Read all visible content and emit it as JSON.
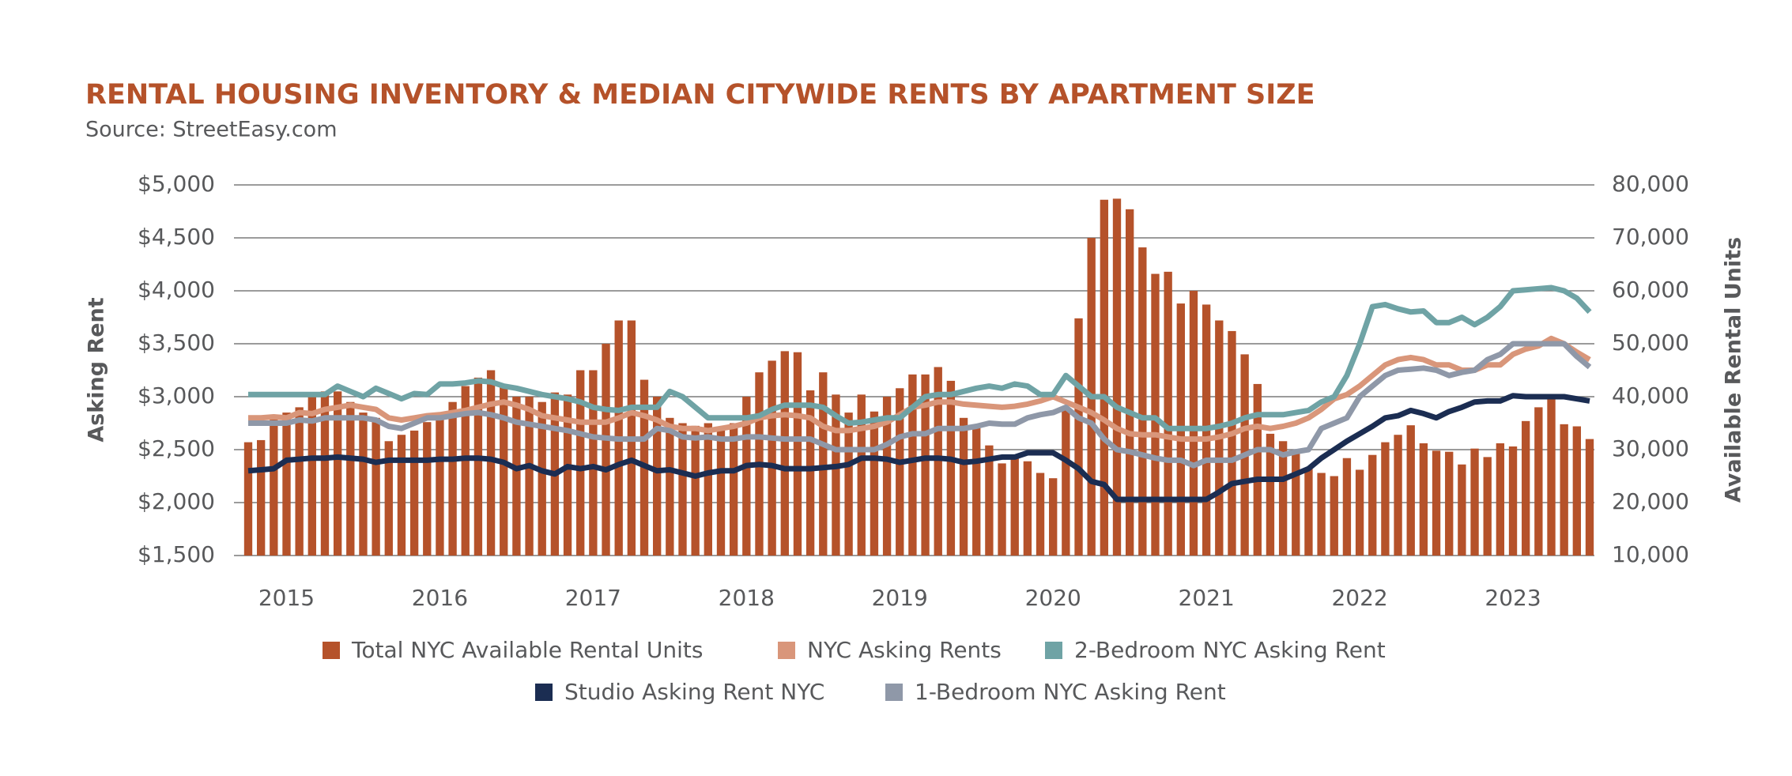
{
  "chart_data": {
    "type": "combo",
    "title": "RENTAL HOUSING INVENTORY & MEDIAN CITYWIDE RENTS BY APARTMENT SIZE",
    "subtitle": "Source: StreetEasy.com",
    "y_label": "Asking Rent",
    "y2_label": "Available Rental Units",
    "categories": [
      null,
      null,
      null,
      "2015",
      null,
      null,
      null,
      null,
      null,
      null,
      null,
      null,
      null,
      null,
      null,
      "2016",
      null,
      null,
      null,
      null,
      null,
      null,
      null,
      null,
      null,
      null,
      null,
      "2017",
      null,
      null,
      null,
      null,
      null,
      null,
      null,
      null,
      null,
      null,
      null,
      "2018",
      null,
      null,
      null,
      null,
      null,
      null,
      null,
      null,
      null,
      null,
      null,
      "2019",
      null,
      null,
      null,
      null,
      null,
      null,
      null,
      null,
      null,
      null,
      null,
      "2020",
      null,
      null,
      null,
      null,
      null,
      null,
      null,
      null,
      null,
      null,
      null,
      "2021",
      null,
      null,
      null,
      null,
      null,
      null,
      null,
      null,
      null,
      null,
      null,
      "2022",
      null,
      null,
      null,
      null,
      null,
      null,
      null,
      null,
      null,
      null,
      null,
      "2023",
      null,
      null,
      null,
      null,
      null,
      null
    ],
    "ylim": [
      1500,
      5000
    ],
    "yticks": [
      {
        "value": 1500,
        "label": "$1,500"
      },
      {
        "value": 2000,
        "label": "$2,000"
      },
      {
        "value": 2500,
        "label": "$2,500"
      },
      {
        "value": 3000,
        "label": "$3,000"
      },
      {
        "value": 3500,
        "label": "$3,500"
      },
      {
        "value": 4000,
        "label": "$4,000"
      },
      {
        "value": 4500,
        "label": "$4,500"
      },
      {
        "value": 5000,
        "label": "$5,000"
      }
    ],
    "y2lim": [
      10000,
      80000
    ],
    "y2ticks": [
      {
        "value": 10000,
        "label": "10,000"
      },
      {
        "value": 20000,
        "label": "20,000"
      },
      {
        "value": 30000,
        "label": "30,000"
      },
      {
        "value": 40000,
        "label": "40,000"
      },
      {
        "value": 50000,
        "label": "50,000"
      },
      {
        "value": 60000,
        "label": "60,000"
      },
      {
        "value": 70000,
        "label": "70,000"
      },
      {
        "value": 80000,
        "label": "80,000"
      }
    ],
    "grid": true,
    "series": [
      {
        "name": "Total NYC Available Rental Units",
        "type": "bar",
        "axis": "y2",
        "color": "#b5522a",
        "values": [
          31400,
          31800,
          36000,
          37000,
          38000,
          40000,
          41000,
          41000,
          39000,
          37000,
          36000,
          31600,
          32800,
          33600,
          35200,
          37000,
          39000,
          42000,
          43600,
          45000,
          42000,
          40000,
          40000,
          39000,
          40800,
          40400,
          45000,
          45000,
          50000,
          54400,
          54400,
          43200,
          40000,
          36000,
          35000,
          34500,
          35000,
          34000,
          35000,
          40000,
          44600,
          46800,
          48600,
          48400,
          41200,
          44600,
          40400,
          37000,
          40400,
          37200,
          40000,
          41600,
          44200,
          44200,
          45600,
          43000,
          36000,
          34400,
          30800,
          27400,
          29000,
          27800,
          25600,
          24600,
          38000,
          54800,
          70000,
          77200,
          77400,
          75400,
          68200,
          63200,
          63600,
          57600,
          60000,
          57400,
          54400,
          52400,
          48000,
          42400,
          33000,
          31600,
          30000,
          26400,
          25600,
          25000,
          28400,
          26200,
          29000,
          31400,
          32800,
          34600,
          31200,
          29800,
          29600,
          27200,
          30200,
          28600,
          31200,
          30600,
          35400,
          38000,
          39800,
          34800,
          34400,
          32000
        ]
      },
      {
        "name": "NYC Asking Rents",
        "type": "line",
        "color": "#d9967a",
        "values": [
          2800,
          2800,
          2810,
          2800,
          2850,
          2840,
          2880,
          2900,
          2920,
          2900,
          2880,
          2800,
          2780,
          2800,
          2820,
          2830,
          2850,
          2870,
          2900,
          2930,
          2950,
          2920,
          2880,
          2820,
          2800,
          2780,
          2760,
          2760,
          2760,
          2800,
          2850,
          2820,
          2780,
          2720,
          2700,
          2700,
          2680,
          2700,
          2720,
          2750,
          2800,
          2820,
          2830,
          2820,
          2800,
          2720,
          2680,
          2680,
          2700,
          2720,
          2760,
          2830,
          2900,
          2920,
          2950,
          2950,
          2930,
          2920,
          2910,
          2900,
          2910,
          2930,
          2960,
          3000,
          2950,
          2900,
          2850,
          2780,
          2700,
          2650,
          2640,
          2640,
          2620,
          2600,
          2600,
          2600,
          2620,
          2650,
          2700,
          2720,
          2700,
          2720,
          2750,
          2800,
          2880,
          2980,
          3020,
          3100,
          3200,
          3300,
          3350,
          3370,
          3350,
          3300,
          3300,
          3250,
          3250,
          3300,
          3300,
          3400,
          3450,
          3480,
          3550,
          3500,
          3420,
          3350
        ]
      },
      {
        "name": "2-Bedroom NYC Asking Rent",
        "type": "line",
        "color": "#6fa3a5",
        "values": [
          3020,
          3020,
          3020,
          3020,
          3020,
          3020,
          3020,
          3100,
          3050,
          3000,
          3080,
          3030,
          2980,
          3030,
          3020,
          3120,
          3120,
          3130,
          3150,
          3140,
          3100,
          3080,
          3050,
          3020,
          3000,
          2980,
          2950,
          2900,
          2880,
          2870,
          2900,
          2900,
          2900,
          3050,
          3000,
          2900,
          2800,
          2800,
          2800,
          2800,
          2820,
          2880,
          2920,
          2920,
          2920,
          2900,
          2820,
          2750,
          2760,
          2780,
          2800,
          2800,
          2900,
          3000,
          3020,
          3020,
          3050,
          3080,
          3100,
          3080,
          3120,
          3100,
          3020,
          3020,
          3200,
          3100,
          3000,
          3000,
          2900,
          2850,
          2800,
          2800,
          2700,
          2700,
          2700,
          2700,
          2720,
          2750,
          2800,
          2830,
          2830,
          2830,
          2850,
          2870,
          2950,
          3000,
          3200,
          3500,
          3850,
          3870,
          3830,
          3800,
          3810,
          3700,
          3700,
          3750,
          3680,
          3750,
          3850,
          4000,
          4010,
          4020,
          4030,
          4000,
          3930,
          3800
        ]
      },
      {
        "name": "Studio Asking Rent NYC",
        "type": "line",
        "color": "#1b2d52",
        "values": [
          2300,
          2310,
          2320,
          2400,
          2410,
          2420,
          2420,
          2430,
          2420,
          2410,
          2380,
          2400,
          2400,
          2400,
          2400,
          2410,
          2410,
          2420,
          2420,
          2410,
          2380,
          2320,
          2350,
          2300,
          2270,
          2340,
          2320,
          2340,
          2310,
          2360,
          2400,
          2350,
          2300,
          2310,
          2280,
          2250,
          2280,
          2300,
          2300,
          2350,
          2360,
          2350,
          2320,
          2320,
          2320,
          2330,
          2340,
          2360,
          2420,
          2420,
          2410,
          2380,
          2400,
          2420,
          2420,
          2410,
          2380,
          2390,
          2410,
          2430,
          2430,
          2470,
          2470,
          2470,
          2400,
          2320,
          2200,
          2170,
          2030,
          2030,
          2030,
          2030,
          2030,
          2030,
          2030,
          2030,
          2100,
          2180,
          2200,
          2220,
          2220,
          2220,
          2270,
          2320,
          2420,
          2500,
          2580,
          2650,
          2720,
          2800,
          2820,
          2870,
          2840,
          2800,
          2860,
          2900,
          2950,
          2960,
          2960,
          3010,
          3000,
          3000,
          3000,
          3000,
          2980,
          2960
        ]
      },
      {
        "name": "1-Bedroom NYC Asking Rent",
        "type": "line",
        "color": "#8f98a8",
        "values": [
          2750,
          2750,
          2750,
          2750,
          2780,
          2770,
          2800,
          2800,
          2800,
          2800,
          2780,
          2720,
          2700,
          2750,
          2800,
          2800,
          2820,
          2840,
          2850,
          2830,
          2800,
          2760,
          2740,
          2720,
          2700,
          2680,
          2650,
          2620,
          2610,
          2600,
          2600,
          2600,
          2700,
          2680,
          2620,
          2610,
          2620,
          2600,
          2600,
          2620,
          2620,
          2610,
          2600,
          2600,
          2600,
          2550,
          2500,
          2500,
          2500,
          2500,
          2550,
          2620,
          2650,
          2650,
          2700,
          2700,
          2700,
          2720,
          2750,
          2740,
          2740,
          2800,
          2830,
          2850,
          2900,
          2800,
          2750,
          2600,
          2500,
          2480,
          2450,
          2420,
          2400,
          2400,
          2350,
          2400,
          2400,
          2400,
          2450,
          2500,
          2500,
          2450,
          2480,
          2500,
          2700,
          2750,
          2800,
          3000,
          3100,
          3200,
          3250,
          3260,
          3270,
          3250,
          3200,
          3230,
          3250,
          3350,
          3400,
          3500,
          3500,
          3500,
          3500,
          3500,
          3380,
          3280
        ]
      }
    ]
  }
}
